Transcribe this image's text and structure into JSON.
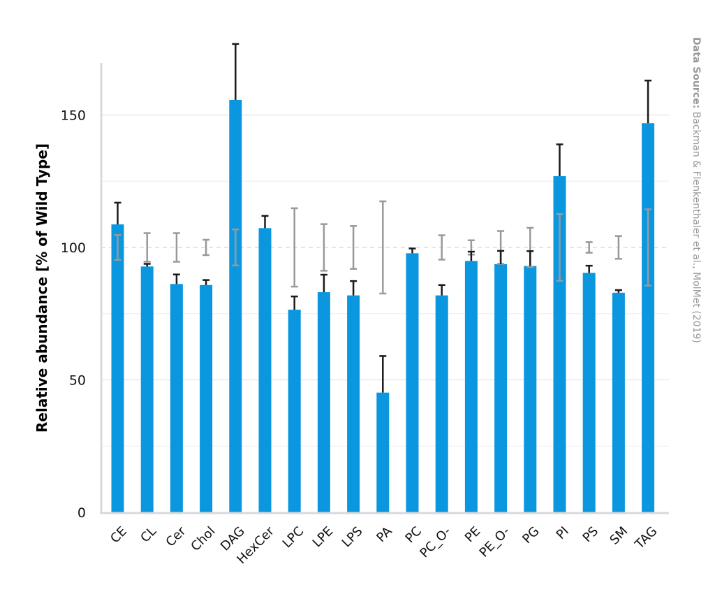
{
  "chart_data": {
    "type": "bar",
    "categories": [
      "CE",
      "CL",
      "Cer",
      "Chol",
      "DAG",
      "HexCer",
      "LPC",
      "LPE",
      "LPS",
      "PA",
      "PC",
      "PC_O-",
      "PE",
      "PE_O-",
      "PG",
      "PI",
      "PS",
      "SM",
      "TAG"
    ],
    "series": [
      {
        "values": [
          108.7,
          92.8,
          86.2,
          85.8,
          155.7,
          107.3,
          76.5,
          83.1,
          81.9,
          45.2,
          97.8,
          81.9,
          94.9,
          93.7,
          93.0,
          126.9,
          90.4,
          82.9,
          146.9
        ],
        "error": [
          8.2,
          1.0,
          3.6,
          1.9,
          21.1,
          4.6,
          5.0,
          6.6,
          5.4,
          13.8,
          1.8,
          3.9,
          3.5,
          5.0,
          5.6,
          12.0,
          2.7,
          1.0,
          16.1
        ],
        "color": "#0a97e0",
        "error_color": "#1a1a1a"
      }
    ],
    "reference": {
      "value": 100,
      "error": [
        4.7,
        5.4,
        5.4,
        2.9,
        6.8,
        0,
        14.8,
        8.8,
        8.1,
        17.4,
        0,
        4.6,
        2.7,
        6.2,
        7.4,
        12.6,
        2.0,
        4.3,
        14.4
      ],
      "color": "#999999"
    },
    "ylabel": "Relative abundance [% of Wild Type]",
    "yticks": [
      0,
      50,
      100,
      150
    ],
    "ylim": [
      -5,
      170
    ],
    "grid": true,
    "source_bold": "Data Source:",
    "source_text": " Backman & Flenkenthaler et al., MolMet (2019)"
  }
}
